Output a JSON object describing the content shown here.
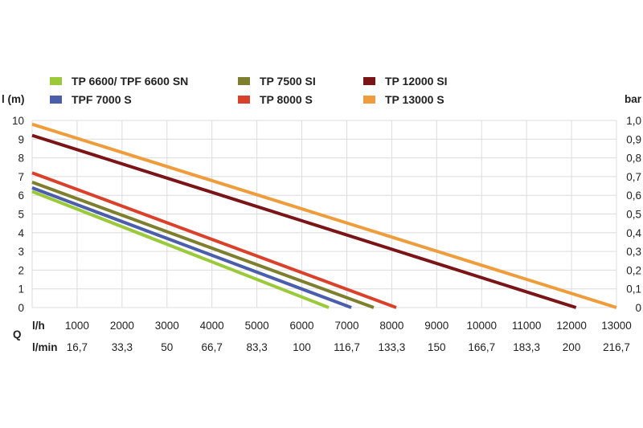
{
  "chart_data": {
    "type": "line",
    "ylabel": "l (m)",
    "y2label": "bar",
    "qlabel": "Q",
    "xlabel": "l/h",
    "x2label": "l/min",
    "xlim": [
      0,
      13000
    ],
    "ylim": [
      0,
      10
    ],
    "grid": true,
    "legend_position": "top",
    "x_ticks": [
      1000,
      2000,
      3000,
      4000,
      5000,
      6000,
      7000,
      8000,
      9000,
      10000,
      11000,
      12000,
      13000
    ],
    "x_tick_labels": [
      "1000",
      "2000",
      "3000",
      "4000",
      "5000",
      "6000",
      "7000",
      "8000",
      "9000",
      "10000",
      "11000",
      "12000",
      "13000"
    ],
    "x2_tick_labels": [
      "16,7",
      "33,3",
      "50",
      "66,7",
      "83,3",
      "100",
      "116,7",
      "133,3",
      "150",
      "166,7",
      "183,3",
      "200",
      "216,7"
    ],
    "y_ticks": [
      0,
      1,
      2,
      3,
      4,
      5,
      6,
      7,
      8,
      9,
      10
    ],
    "y_tick_labels": [
      "0",
      "1",
      "2",
      "3",
      "4",
      "5",
      "6",
      "7",
      "8",
      "9",
      "10"
    ],
    "y2_tick_labels": [
      "0",
      "0,1",
      "0,2",
      "0,3",
      "0,4",
      "0,5",
      "0,6",
      "0,7",
      "0,8",
      "0,9",
      "1,0"
    ],
    "series": [
      {
        "name": "TP 6600/ TPF 6600 SN",
        "color": "#9ac93a",
        "x": [
          0,
          6600
        ],
        "y": [
          6.2,
          0
        ]
      },
      {
        "name": "TPF 7000 S",
        "color": "#4a5eab",
        "x": [
          0,
          7100
        ],
        "y": [
          6.4,
          0
        ]
      },
      {
        "name": "TP 7500 SI",
        "color": "#7d7f2e",
        "x": [
          0,
          7600
        ],
        "y": [
          6.7,
          0
        ]
      },
      {
        "name": "TP 8000 S",
        "color": "#d9412a",
        "x": [
          0,
          8100
        ],
        "y": [
          7.2,
          0
        ]
      },
      {
        "name": "TP 12000 SI",
        "color": "#7b1416",
        "x": [
          0,
          12100
        ],
        "y": [
          9.2,
          0
        ]
      },
      {
        "name": "TP 13000 S",
        "color": "#ef9d3c",
        "x": [
          0,
          13000
        ],
        "y": [
          9.8,
          0
        ]
      }
    ]
  }
}
